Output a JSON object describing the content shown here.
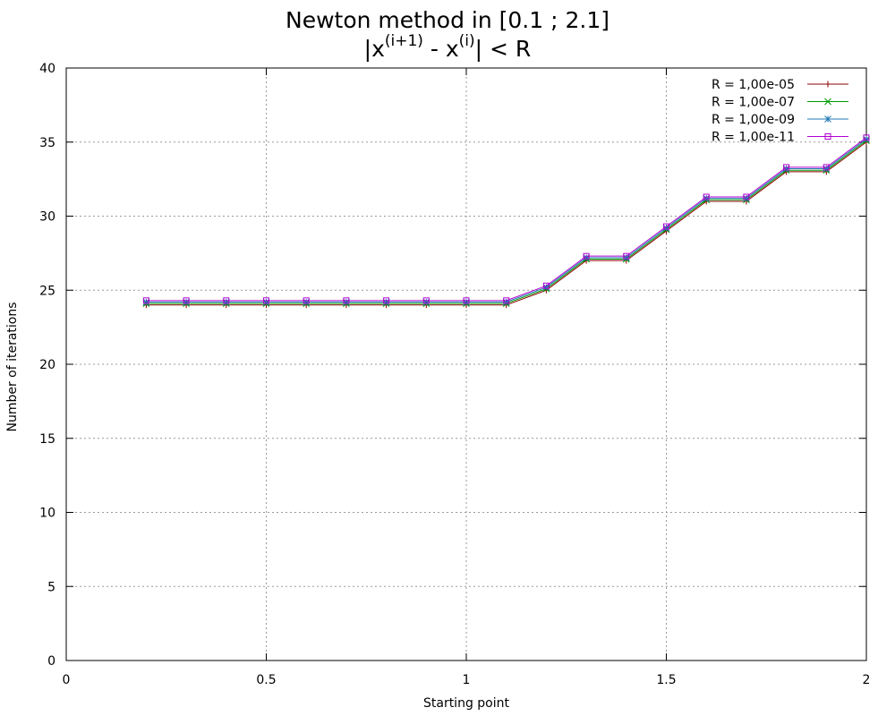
{
  "chart_data": {
    "type": "line",
    "title": "Newton method in [0.1 ; 2.1]",
    "subtitle": {
      "p1": "|x",
      "s1": "(i+1)",
      "p2": " - x",
      "s2": "(i)",
      "p3": "| < R"
    },
    "xlabel": "Starting point",
    "ylabel": "Number of iterations",
    "xlim": [
      0,
      2
    ],
    "ylim": [
      0,
      40
    ],
    "xticks": [
      "0",
      "0.5",
      "1",
      "1.5",
      "2"
    ],
    "xtick_values": [
      0,
      0.5,
      1,
      1.5,
      2
    ],
    "yticks": [
      "0",
      "5",
      "10",
      "15",
      "20",
      "25",
      "30",
      "35",
      "40"
    ],
    "ytick_values": [
      0,
      5,
      10,
      15,
      20,
      25,
      30,
      35,
      40
    ],
    "grid": true,
    "legend_position": "top-right",
    "x": [
      0.2,
      0.3,
      0.4,
      0.5,
      0.6,
      0.7,
      0.8,
      0.9,
      1.0,
      1.1,
      1.2,
      1.3,
      1.4,
      1.5,
      1.6,
      1.7,
      1.8,
      1.9,
      2.0
    ],
    "series": [
      {
        "name": "R = 1,00e-05",
        "color": "#8b0000",
        "marker": "plus",
        "values": [
          24,
          24,
          24,
          24,
          24,
          24,
          24,
          24,
          24,
          24,
          25,
          27,
          27,
          29,
          31,
          31,
          33,
          33,
          35
        ]
      },
      {
        "name": "R = 1,00e-07",
        "color": "#009900",
        "marker": "cross",
        "values": [
          24.1,
          24.1,
          24.1,
          24.1,
          24.1,
          24.1,
          24.1,
          24.1,
          24.1,
          24.1,
          25.1,
          27.1,
          27.1,
          29.1,
          31.1,
          31.1,
          33.1,
          33.1,
          35.1
        ]
      },
      {
        "name": "R = 1,00e-09",
        "color": "#1f78b4",
        "marker": "star",
        "values": [
          24.2,
          24.2,
          24.2,
          24.2,
          24.2,
          24.2,
          24.2,
          24.2,
          24.2,
          24.2,
          25.2,
          27.2,
          27.2,
          29.2,
          31.2,
          31.2,
          33.2,
          33.2,
          35.2
        ]
      },
      {
        "name": "R = 1,00e-11",
        "color": "#b000d0",
        "marker": "square",
        "values": [
          24.3,
          24.3,
          24.3,
          24.3,
          24.3,
          24.3,
          24.3,
          24.3,
          24.3,
          24.3,
          25.3,
          27.3,
          27.3,
          29.3,
          31.3,
          31.3,
          33.3,
          33.3,
          35.3
        ]
      }
    ]
  }
}
